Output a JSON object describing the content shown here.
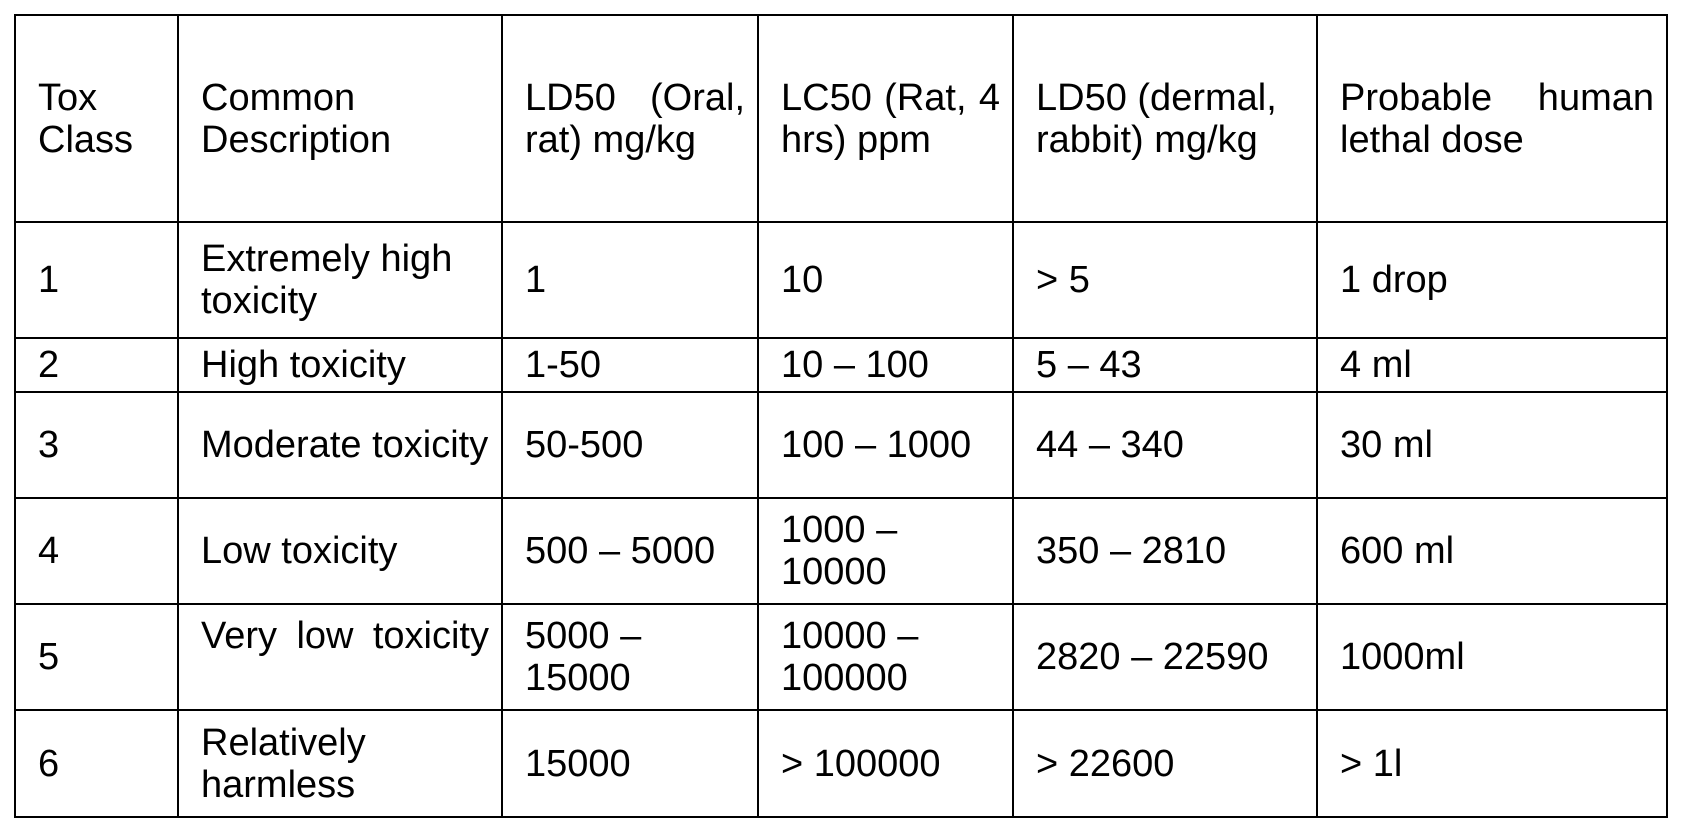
{
  "table": {
    "headers": [
      "Tox Class",
      "Common Description",
      "LD50 (Oral, rat) mg/kg",
      "LC50 (Rat, 4 hrs) ppm",
      "LD50 (dermal, rabbit) mg/kg",
      "Probable human lethal dose"
    ],
    "rows": [
      [
        "1",
        "Extremely high toxicity",
        "1",
        "10",
        "> 5",
        "1 drop"
      ],
      [
        "2",
        "High toxicity",
        "1-50",
        "10 – 100",
        "5 – 43",
        "4 ml"
      ],
      [
        "3",
        "Moderate toxicity",
        "50-500",
        "100 – 1000",
        "44 – 340",
        "30 ml"
      ],
      [
        "4",
        "Low toxicity",
        "500 – 5000",
        "1000 – 10000",
        "350 – 2810",
        "600 ml"
      ],
      [
        "5",
        "Very low toxicity",
        "5000 – 15000",
        "10000 – 100000",
        "2820 – 22590",
        "1000ml"
      ],
      [
        "6",
        "Relatively harmless",
        "15000",
        "> 100000",
        "> 22600",
        "> 1l"
      ]
    ]
  }
}
